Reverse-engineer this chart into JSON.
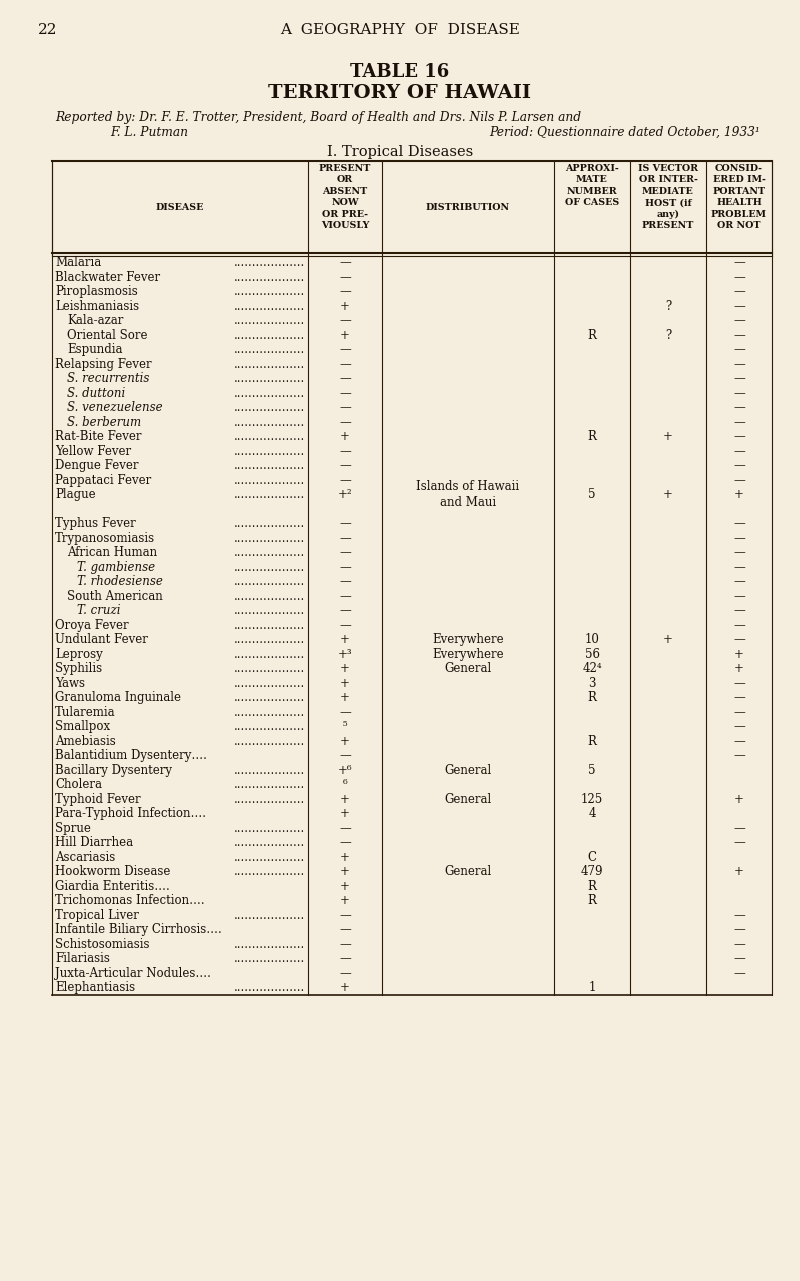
{
  "page_number": "22",
  "header_title": "A  GEOGRAPHY  OF  DISEASE",
  "table_title": "TABLE 16",
  "table_subtitle": "TERRITORY OF HAWAII",
  "reported_line1": "Reported by: Dr. F. E. Trotter, President, Board of Health and Drs. Nils P. Larsen and",
  "reported_line2_left": "F. L. Putman",
  "reported_line2_right": "Period: Questionnaire dated October, 1933¹",
  "section_title": "I. Tropical Diseases",
  "bg_color": "#f5eedf",
  "text_color": "#1a1008",
  "line_color": "#2a1a08",
  "rows": [
    {
      "disease": "Malaria",
      "indent": 0,
      "italic": false,
      "dots": true,
      "present": "—",
      "distribution": "",
      "cases": "",
      "vector": "",
      "important": "—"
    },
    {
      "disease": "Blackwater Fever",
      "indent": 0,
      "italic": false,
      "dots": true,
      "present": "—",
      "distribution": "",
      "cases": "",
      "vector": "",
      "important": "—"
    },
    {
      "disease": "Piroplasmosis",
      "indent": 0,
      "italic": false,
      "dots": true,
      "present": "—",
      "distribution": "",
      "cases": "",
      "vector": "",
      "important": "—"
    },
    {
      "disease": "Leishmaniasis",
      "indent": 0,
      "italic": false,
      "dots": true,
      "present": "+",
      "distribution": "",
      "cases": "",
      "vector": "?",
      "important": "—"
    },
    {
      "disease": "Kala-azar",
      "indent": 1,
      "italic": false,
      "dots": true,
      "present": "—",
      "distribution": "",
      "cases": "",
      "vector": "",
      "important": "—"
    },
    {
      "disease": "Oriental Sore",
      "indent": 1,
      "italic": false,
      "dots": true,
      "present": "+",
      "distribution": "",
      "cases": "R",
      "vector": "?",
      "important": "—"
    },
    {
      "disease": "Espundia",
      "indent": 1,
      "italic": false,
      "dots": true,
      "present": "—",
      "distribution": "",
      "cases": "",
      "vector": "",
      "important": "—"
    },
    {
      "disease": "Relapsing Fever",
      "indent": 0,
      "italic": false,
      "dots": true,
      "present": "—",
      "distribution": "",
      "cases": "",
      "vector": "",
      "important": "—"
    },
    {
      "disease": "S. recurrentis",
      "indent": 1,
      "italic": true,
      "dots": true,
      "present": "—",
      "distribution": "",
      "cases": "",
      "vector": "",
      "important": "—"
    },
    {
      "disease": "S. duttoni",
      "indent": 1,
      "italic": true,
      "dots": true,
      "present": "—",
      "distribution": "",
      "cases": "",
      "vector": "",
      "important": "—"
    },
    {
      "disease": "S. venezuelense",
      "indent": 1,
      "italic": true,
      "dots": true,
      "present": "—",
      "distribution": "",
      "cases": "",
      "vector": "",
      "important": "—"
    },
    {
      "disease": "S. berberum",
      "indent": 1,
      "italic": true,
      "dots": true,
      "present": "—",
      "distribution": "",
      "cases": "",
      "vector": "",
      "important": "—"
    },
    {
      "disease": "Rat-Bite Fever",
      "indent": 0,
      "italic": false,
      "dots": true,
      "present": "+",
      "distribution": "",
      "cases": "R",
      "vector": "+",
      "important": "—"
    },
    {
      "disease": "Yellow Fever",
      "indent": 0,
      "italic": false,
      "dots": true,
      "present": "—",
      "distribution": "",
      "cases": "",
      "vector": "",
      "important": "—"
    },
    {
      "disease": "Dengue Fever",
      "indent": 0,
      "italic": false,
      "dots": true,
      "present": "—",
      "distribution": "",
      "cases": "",
      "vector": "",
      "important": "—"
    },
    {
      "disease": "Pappataci Fever",
      "indent": 0,
      "italic": false,
      "dots": true,
      "present": "—",
      "distribution": "",
      "cases": "",
      "vector": "",
      "important": "—"
    },
    {
      "disease": "Plague",
      "indent": 0,
      "italic": false,
      "dots": true,
      "present": "+²",
      "distribution": "Islands of Hawaii\nand Maui",
      "cases": "5",
      "vector": "+",
      "important": "+"
    },
    {
      "disease": "",
      "indent": 0,
      "italic": false,
      "dots": false,
      "present": "",
      "distribution": "",
      "cases": "",
      "vector": "",
      "important": ""
    },
    {
      "disease": "Typhus Fever",
      "indent": 0,
      "italic": false,
      "dots": true,
      "present": "—",
      "distribution": "",
      "cases": "",
      "vector": "",
      "important": "—"
    },
    {
      "disease": "Trypanosomiasis",
      "indent": 0,
      "italic": false,
      "dots": true,
      "present": "—",
      "distribution": "",
      "cases": "",
      "vector": "",
      "important": "—"
    },
    {
      "disease": "African Human",
      "indent": 1,
      "italic": false,
      "dots": true,
      "present": "—",
      "distribution": "",
      "cases": "",
      "vector": "",
      "important": "—"
    },
    {
      "disease": "T. gambiense",
      "indent": 2,
      "italic": true,
      "dots": true,
      "present": "—",
      "distribution": "",
      "cases": "",
      "vector": "",
      "important": "—"
    },
    {
      "disease": "T. rhodesiense",
      "indent": 2,
      "italic": true,
      "dots": true,
      "present": "—",
      "distribution": "",
      "cases": "",
      "vector": "",
      "important": "—"
    },
    {
      "disease": "South American",
      "indent": 1,
      "italic": false,
      "dots": true,
      "present": "—",
      "distribution": "",
      "cases": "",
      "vector": "",
      "important": "—"
    },
    {
      "disease": "T. cruzi",
      "indent": 2,
      "italic": true,
      "dots": true,
      "present": "—",
      "distribution": "",
      "cases": "",
      "vector": "",
      "important": "—"
    },
    {
      "disease": "Oroya Fever",
      "indent": 0,
      "italic": false,
      "dots": true,
      "present": "—",
      "distribution": "",
      "cases": "",
      "vector": "",
      "important": "—"
    },
    {
      "disease": "Undulant Fever",
      "indent": 0,
      "italic": false,
      "dots": true,
      "present": "+",
      "distribution": "Everywhere",
      "cases": "10",
      "vector": "+",
      "important": "—"
    },
    {
      "disease": "Leprosy",
      "indent": 0,
      "italic": false,
      "dots": true,
      "present": "+³",
      "distribution": "Everywhere",
      "cases": "56",
      "vector": "",
      "important": "+"
    },
    {
      "disease": "Syphilis",
      "indent": 0,
      "italic": false,
      "dots": true,
      "present": "+",
      "distribution": "General",
      "cases": "42⁴",
      "vector": "",
      "important": "+"
    },
    {
      "disease": "Yaws",
      "indent": 0,
      "italic": false,
      "dots": true,
      "present": "+",
      "distribution": "",
      "cases": "3",
      "vector": "",
      "important": "—"
    },
    {
      "disease": "Granuloma Inguinale",
      "indent": 0,
      "italic": false,
      "dots": true,
      "present": "+",
      "distribution": "",
      "cases": "R",
      "vector": "",
      "important": "—"
    },
    {
      "disease": "Tularemia",
      "indent": 0,
      "italic": false,
      "dots": true,
      "present": "—",
      "distribution": "",
      "cases": "",
      "vector": "",
      "important": "—"
    },
    {
      "disease": "Smallpox",
      "indent": 0,
      "italic": false,
      "dots": true,
      "present": "⁵",
      "distribution": "",
      "cases": "",
      "vector": "",
      "important": "—"
    },
    {
      "disease": "Amebiasis",
      "indent": 0,
      "italic": false,
      "dots": true,
      "present": "+",
      "distribution": "",
      "cases": "R",
      "vector": "",
      "important": "—"
    },
    {
      "disease": "Balantidium Dysentery….",
      "indent": 0,
      "italic": false,
      "dots": false,
      "present": "—",
      "distribution": "",
      "cases": "",
      "vector": "",
      "important": "—"
    },
    {
      "disease": "Bacillary Dysentery",
      "indent": 0,
      "italic": false,
      "dots": true,
      "present": "+⁶",
      "distribution": "General",
      "cases": "5",
      "vector": "",
      "important": ""
    },
    {
      "disease": "Cholera",
      "indent": 0,
      "italic": false,
      "dots": true,
      "present": "⁶",
      "distribution": "",
      "cases": "",
      "vector": "",
      "important": ""
    },
    {
      "disease": "Typhoid Fever",
      "indent": 0,
      "italic": false,
      "dots": true,
      "present": "+",
      "distribution": "General",
      "cases": "125",
      "vector": "",
      "important": "+"
    },
    {
      "disease": "Para-Typhoid Infection….",
      "indent": 0,
      "italic": false,
      "dots": false,
      "present": "+",
      "distribution": "",
      "cases": "4",
      "vector": "",
      "important": ""
    },
    {
      "disease": "Sprue",
      "indent": 0,
      "italic": false,
      "dots": true,
      "present": "—",
      "distribution": "",
      "cases": "",
      "vector": "",
      "important": "—"
    },
    {
      "disease": "Hill Diarrhea",
      "indent": 0,
      "italic": false,
      "dots": true,
      "present": "—",
      "distribution": "",
      "cases": "",
      "vector": "",
      "important": "—"
    },
    {
      "disease": "Ascariasis",
      "indent": 0,
      "italic": false,
      "dots": true,
      "present": "+",
      "distribution": "",
      "cases": "C",
      "vector": "",
      "important": ""
    },
    {
      "disease": "Hookworm Disease",
      "indent": 0,
      "italic": false,
      "dots": true,
      "present": "+",
      "distribution": "General",
      "cases": "479",
      "vector": "",
      "important": "+"
    },
    {
      "disease": "Giardia Enteritis….",
      "indent": 0,
      "italic": false,
      "dots": false,
      "present": "+",
      "distribution": "",
      "cases": "R",
      "vector": "",
      "important": ""
    },
    {
      "disease": "Trichomonas Infection….",
      "indent": 0,
      "italic": false,
      "dots": false,
      "present": "+",
      "distribution": "",
      "cases": "R",
      "vector": "",
      "important": ""
    },
    {
      "disease": "Tropical Liver",
      "indent": 0,
      "italic": false,
      "dots": true,
      "present": "—",
      "distribution": "",
      "cases": "",
      "vector": "",
      "important": "—"
    },
    {
      "disease": "Infantile Biliary Cirrhosis….",
      "indent": 0,
      "italic": false,
      "dots": false,
      "present": "—",
      "distribution": "",
      "cases": "",
      "vector": "",
      "important": "—"
    },
    {
      "disease": "Schistosomiasis",
      "indent": 0,
      "italic": false,
      "dots": true,
      "present": "—",
      "distribution": "",
      "cases": "",
      "vector": "",
      "important": "—"
    },
    {
      "disease": "Filariasis",
      "indent": 0,
      "italic": false,
      "dots": true,
      "present": "—",
      "distribution": "",
      "cases": "",
      "vector": "",
      "important": "—"
    },
    {
      "disease": "Juxta-Articular Nodules….",
      "indent": 0,
      "italic": false,
      "dots": false,
      "present": "—",
      "distribution": "",
      "cases": "",
      "vector": "",
      "important": "—"
    },
    {
      "disease": "Elephantiasis",
      "indent": 0,
      "italic": false,
      "dots": true,
      "present": "+",
      "distribution": "",
      "cases": "1",
      "vector": "",
      "important": ""
    }
  ]
}
